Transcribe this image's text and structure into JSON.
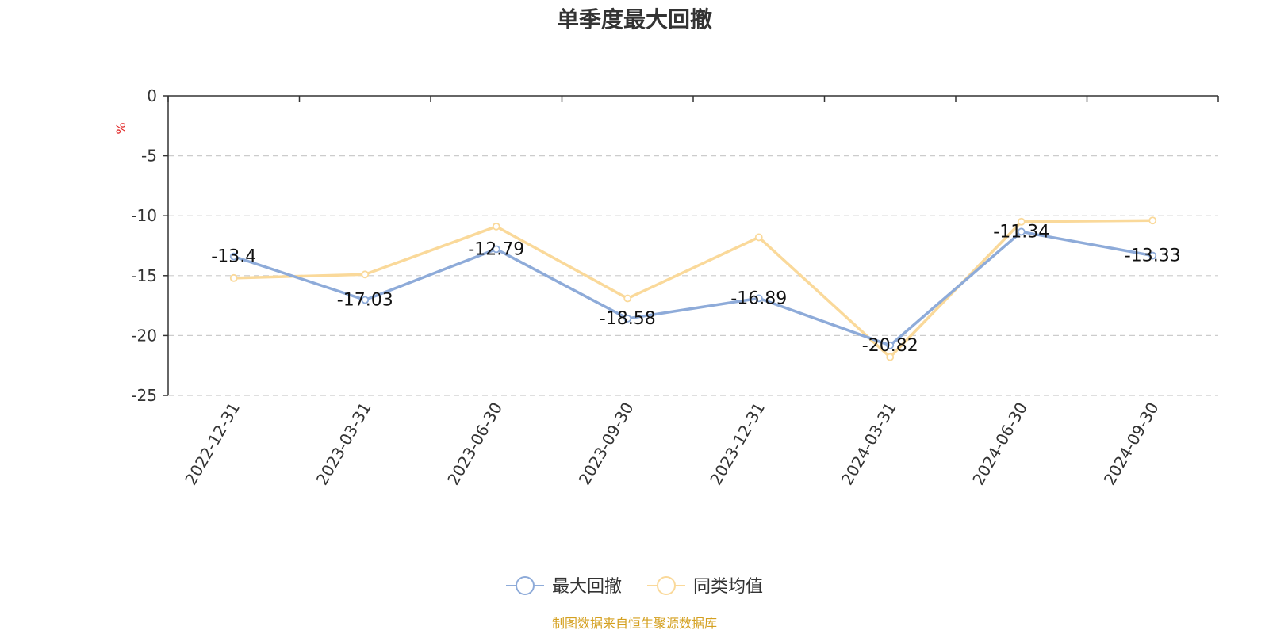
{
  "chart_data": {
    "type": "line",
    "title": "单季度最大回撤",
    "y_unit": "%",
    "ylim": [
      -25,
      0
    ],
    "y_ticks": [
      0,
      -5,
      -10,
      -15,
      -20,
      -25
    ],
    "grid": "horizontal-dashed",
    "categories": [
      "2022-12-31",
      "2023-03-31",
      "2023-06-30",
      "2023-09-30",
      "2023-12-31",
      "2024-03-31",
      "2024-06-30",
      "2024-09-30"
    ],
    "series": [
      {
        "name": "最大回撤",
        "color": "#8eabd9",
        "values": [
          -13.4,
          -17.03,
          -12.79,
          -18.58,
          -16.89,
          -20.82,
          -11.34,
          -13.33
        ],
        "labels": [
          "-13.4",
          "-17.03",
          "-12.79",
          "-18.58",
          "-16.89",
          "-20.82",
          "-11.34",
          "-13.33"
        ]
      },
      {
        "name": "同类均值",
        "color": "#fad99a",
        "values": [
          -15.2,
          -14.9,
          -10.9,
          -16.9,
          -11.8,
          -21.8,
          -10.5,
          -10.4
        ]
      }
    ],
    "legend_position": "bottom-center",
    "unit_color": "#e02020"
  },
  "source_note": "制图数据来自恒生聚源数据库",
  "source_color": "#d4a020"
}
